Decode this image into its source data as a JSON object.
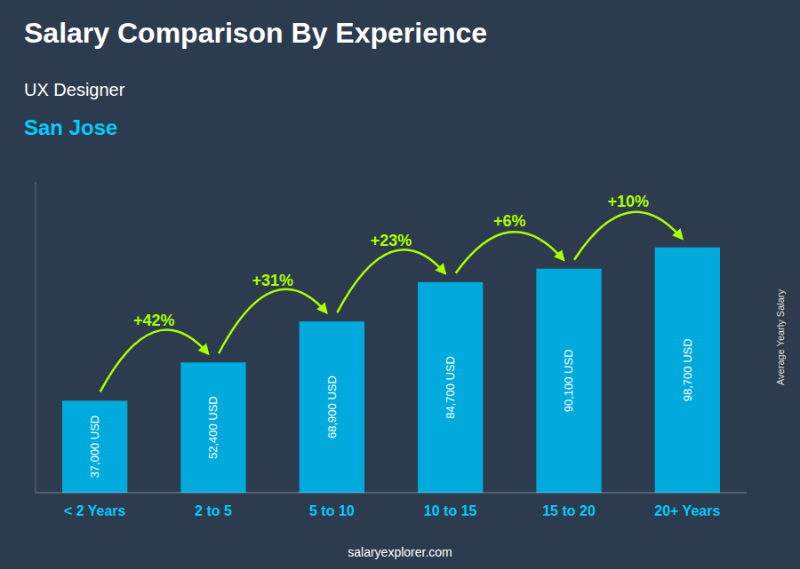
{
  "chart_data": {
    "type": "bar",
    "title": "Salary Comparison By Experience",
    "subtitle": [
      "UX Designer",
      "San Jose"
    ],
    "y_label": "Average Yearly Salary",
    "categories": [
      "< 2 Years",
      "2 to 5",
      "5 to 10",
      "10 to 15",
      "15 to 20",
      "20+ Years"
    ],
    "values": [
      37000,
      52400,
      68900,
      84700,
      90100,
      98700
    ],
    "value_labels": [
      "37,000 USD",
      "52,400 USD",
      "68,900 USD",
      "84,700 USD",
      "90,100 USD",
      "98,700 USD"
    ],
    "data_labels": true,
    "color": "#00aadd",
    "ylim": [
      0,
      125000
    ],
    "yticks": [],
    "tick_labels": "x",
    "grid": false,
    "annotations": [
      {
        "text": "+42%",
        "categories": [
          "< 2 Years",
          "2 to 5"
        ]
      },
      {
        "text": "+31%",
        "categories": [
          "2 to 5",
          "5 to 10"
        ]
      },
      {
        "text": "+23%",
        "categories": [
          "5 to 10",
          "10 to 15"
        ]
      },
      {
        "text": "+6%",
        "categories": [
          "10 to 15",
          "15 to 20"
        ]
      },
      {
        "text": "+10%",
        "categories": [
          "15 to 20",
          "20+ Years"
        ]
      },
      {
        "text": "salaryexplorer.com"
      }
    ]
  }
}
